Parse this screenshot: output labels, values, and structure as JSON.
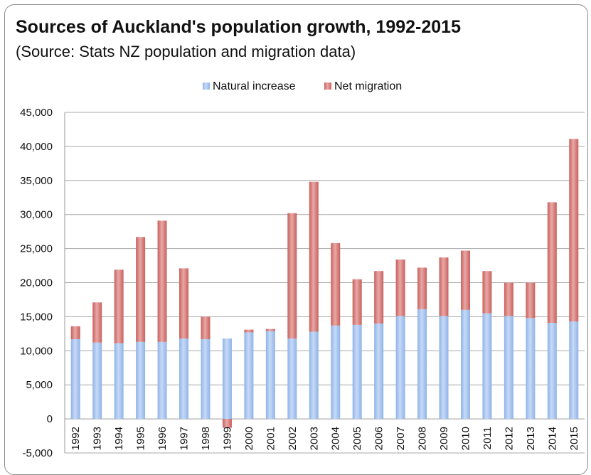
{
  "chart_data": {
    "type": "bar",
    "stacked": true,
    "title": "Sources of Auckland's population growth, 1992-2015",
    "subtitle": "(Source: Stats NZ population and migration data)",
    "categories": [
      "1992",
      "1993",
      "1994",
      "1995",
      "1996",
      "1997",
      "1998",
      "1999",
      "2000",
      "2001",
      "2002",
      "2003",
      "2004",
      "2005",
      "2006",
      "2007",
      "2008",
      "2009",
      "2010",
      "2011",
      "2012",
      "2013",
      "2014",
      "2015"
    ],
    "series": [
      {
        "name": "Natural increase",
        "color": "#8fb3e8",
        "values": [
          11700,
          11200,
          11100,
          11300,
          11300,
          11800,
          11700,
          11800,
          12700,
          12900,
          11800,
          12800,
          13700,
          13800,
          14000,
          15100,
          16100,
          15100,
          16000,
          15500,
          15100,
          14800,
          14100,
          14300
        ]
      },
      {
        "name": "Net migration",
        "color": "#c9605d",
        "values": [
          1900,
          5900,
          10800,
          15400,
          17800,
          10300,
          3300,
          -1300,
          400,
          300,
          18400,
          22000,
          12100,
          6700,
          7700,
          8300,
          6100,
          8600,
          8700,
          6200,
          4900,
          5200,
          17700,
          26800
        ]
      }
    ],
    "ylim": [
      -5000,
      45000
    ],
    "yticks": [
      "-5,000",
      "0",
      "5,000",
      "10,000",
      "15,000",
      "20,000",
      "25,000",
      "30,000",
      "35,000",
      "40,000",
      "45,000"
    ],
    "ytick_values": [
      -5000,
      0,
      5000,
      10000,
      15000,
      20000,
      25000,
      30000,
      35000,
      40000,
      45000
    ],
    "grid": true,
    "legend_position": "top"
  }
}
